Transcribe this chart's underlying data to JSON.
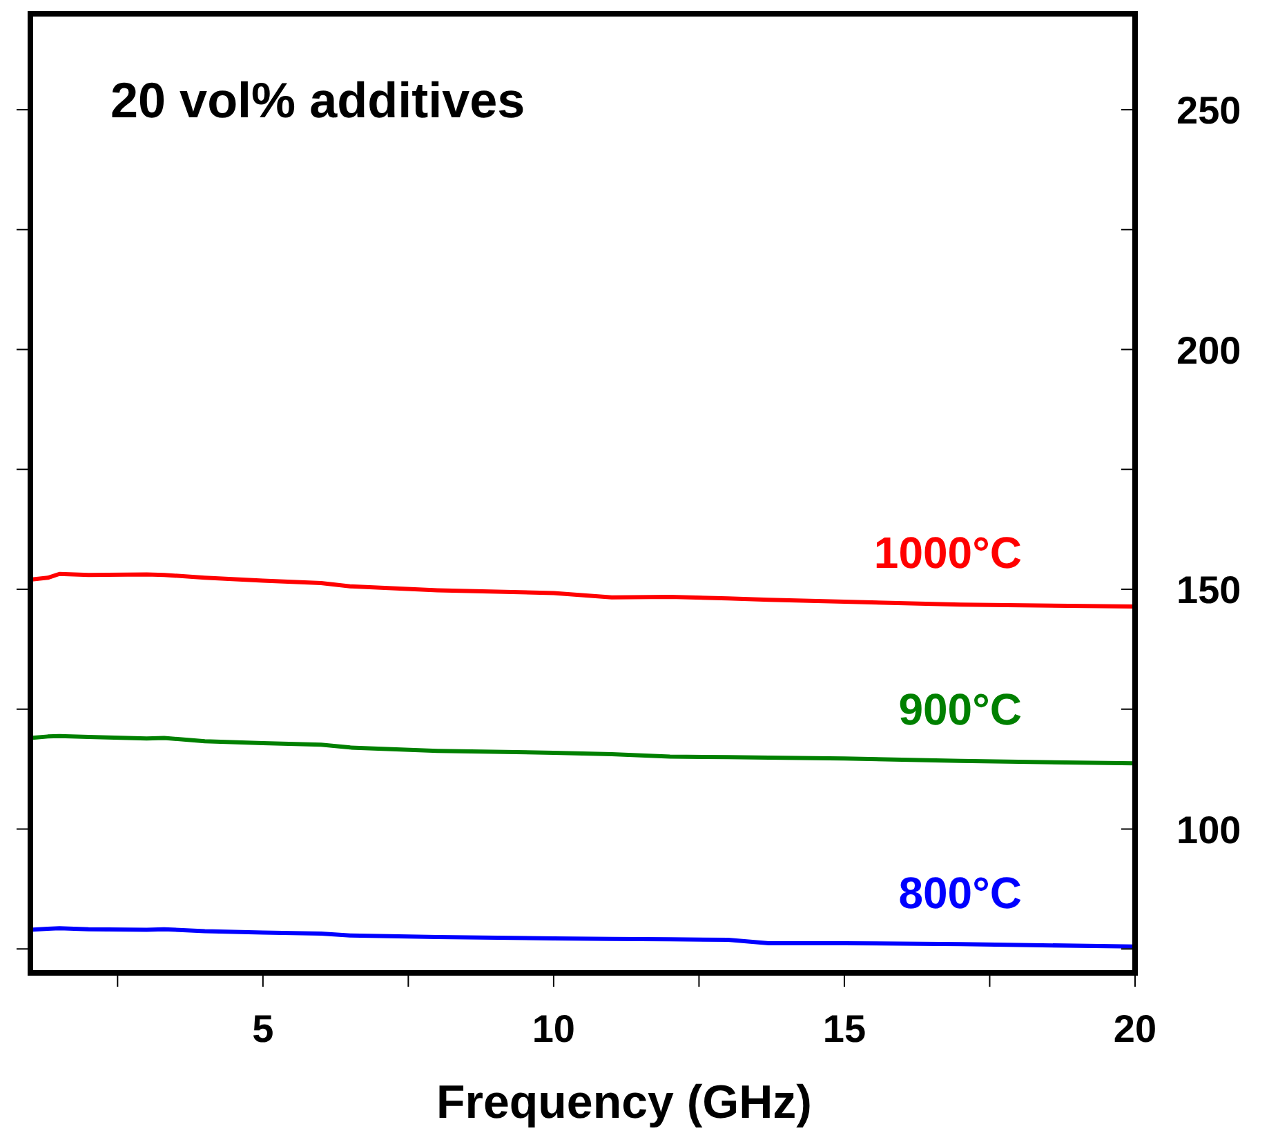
{
  "chart_data": {
    "type": "line",
    "title": "20 vol% additives",
    "xlabel": "Frequency (GHz)",
    "x": [
      1,
      1.3,
      1.5,
      2,
      3,
      3.3,
      4,
      5,
      6,
      6.5,
      8,
      10,
      11,
      12,
      13,
      13.7,
      15,
      17,
      20
    ],
    "series": [
      {
        "name": "1000°C",
        "color": "#ff0000",
        "values": [
          152.0,
          152.4,
          153.2,
          153.0,
          153.1,
          153.0,
          152.4,
          151.8,
          151.3,
          150.6,
          149.8,
          149.2,
          148.3,
          148.4,
          148.1,
          147.8,
          147.4,
          146.8,
          146.4
        ]
      },
      {
        "name": "900°C",
        "color": "#008000",
        "values": [
          119.0,
          119.3,
          119.4,
          119.2,
          118.9,
          119.0,
          118.3,
          117.9,
          117.6,
          117.0,
          116.3,
          115.9,
          115.6,
          115.1,
          115.0,
          114.9,
          114.7,
          114.2,
          113.7
        ]
      },
      {
        "name": "800°C",
        "color": "#0000ff",
        "values": [
          79.0,
          79.2,
          79.3,
          79.1,
          79.0,
          79.1,
          78.7,
          78.4,
          78.2,
          77.8,
          77.5,
          77.2,
          77.1,
          77.0,
          76.9,
          76.2,
          76.2,
          76.0,
          75.5
        ]
      }
    ],
    "xlim": [
      1,
      20
    ],
    "xticks": [
      {
        "value": 2.5,
        "label": null
      },
      5,
      {
        "value": 7.5,
        "label": null
      },
      10,
      {
        "value": 12.5,
        "label": null
      },
      15,
      {
        "value": 17.5,
        "label": null
      },
      20
    ],
    "ylim": [
      70,
      270
    ],
    "yticks": [
      {
        "value": 75,
        "label": null
      },
      100,
      {
        "value": 125,
        "label": null
      },
      150,
      {
        "value": 175,
        "label": null
      },
      200,
      {
        "value": 225,
        "label": null
      },
      250
    ],
    "grid": false,
    "marker": "none",
    "line_style": "solid"
  }
}
